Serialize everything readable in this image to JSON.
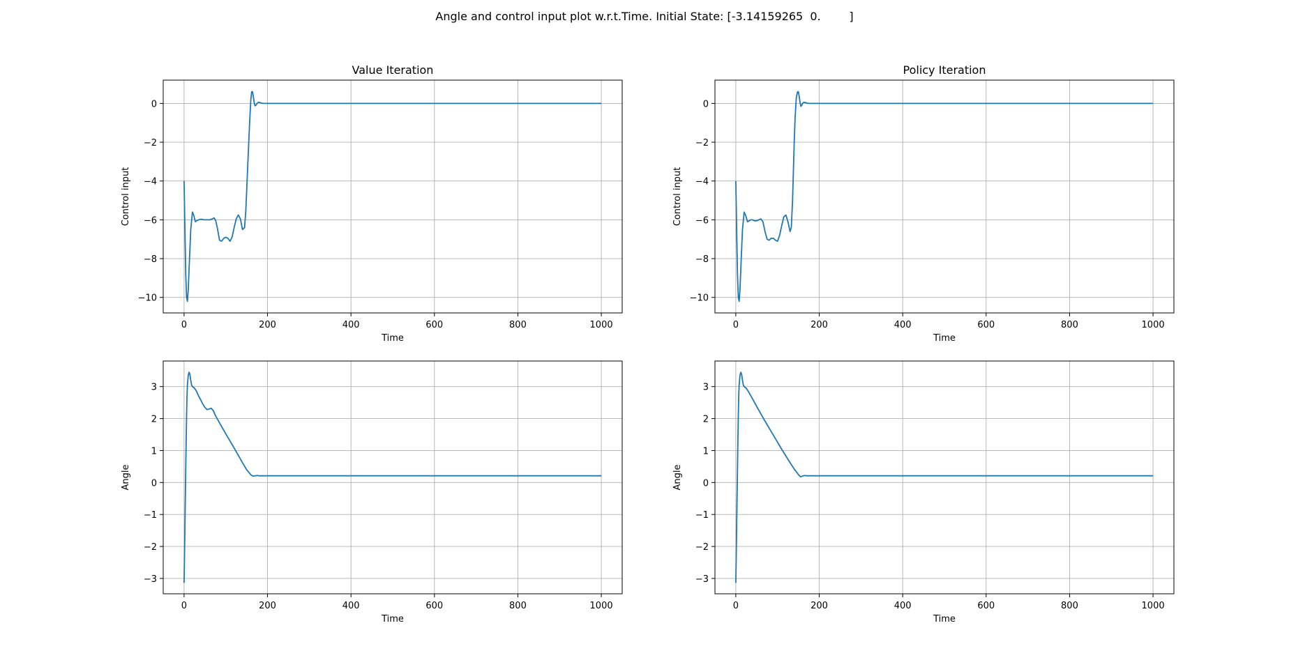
{
  "figure": {
    "suptitle": "Angle and control input plot w.r.t.Time. Initial State: [-3.14159265  0.        ]"
  },
  "colors": {
    "line": "#1f77b4",
    "grid": "#b0b0b0",
    "axes": "#000000"
  },
  "chart_data": [
    {
      "type": "line",
      "title": "Value Iteration",
      "xlabel": "Time",
      "ylabel": "Control input",
      "xlim": [
        -50,
        1050
      ],
      "ylim": [
        -10.8,
        1.2
      ],
      "xticks": [
        0,
        200,
        400,
        600,
        800,
        1000
      ],
      "xtick_labels": [
        "0",
        "200",
        "400",
        "600",
        "800",
        "1000"
      ],
      "yticks": [
        0,
        -2,
        -4,
        -6,
        -8,
        -10
      ],
      "ytick_labels": [
        "0",
        "−2",
        "−4",
        "−6",
        "−8",
        "−10"
      ],
      "grid": true,
      "series": [
        {
          "name": "control",
          "x": [
            0,
            2,
            4,
            6,
            8,
            10,
            13,
            16,
            20,
            23,
            27,
            30,
            35,
            40,
            48,
            55,
            62,
            68,
            72,
            76,
            80,
            85,
            90,
            95,
            100,
            105,
            110,
            115,
            120,
            125,
            130,
            135,
            140,
            145,
            148,
            150,
            153,
            156,
            158,
            160,
            162,
            164,
            166,
            168,
            170,
            172,
            175,
            178,
            181,
            185,
            190,
            195,
            200,
            300,
            500,
            700,
            900,
            1000
          ],
          "y": [
            -4.0,
            -6.5,
            -8.8,
            -10.0,
            -10.2,
            -9.6,
            -8.0,
            -6.5,
            -5.6,
            -5.75,
            -6.1,
            -6.05,
            -6.0,
            -5.97,
            -6.0,
            -6.0,
            -6.0,
            -5.95,
            -5.9,
            -6.05,
            -6.45,
            -7.05,
            -7.1,
            -6.95,
            -6.9,
            -6.95,
            -7.1,
            -6.9,
            -6.4,
            -5.95,
            -5.75,
            -5.95,
            -6.5,
            -6.4,
            -5.5,
            -4.5,
            -3.0,
            -1.5,
            -0.6,
            0.2,
            0.6,
            0.6,
            0.35,
            0.05,
            -0.12,
            -0.1,
            0.0,
            0.06,
            0.05,
            0.02,
            0.0,
            0.0,
            0.0,
            0.0,
            0.0,
            0.0,
            0.0,
            0.0
          ]
        }
      ]
    },
    {
      "type": "line",
      "title": "Policy Iteration",
      "xlabel": "Time",
      "ylabel": "Control input",
      "xlim": [
        -50,
        1050
      ],
      "ylim": [
        -10.8,
        1.2
      ],
      "xticks": [
        0,
        200,
        400,
        600,
        800,
        1000
      ],
      "xtick_labels": [
        "0",
        "200",
        "400",
        "600",
        "800",
        "1000"
      ],
      "yticks": [
        0,
        -2,
        -4,
        -6,
        -8,
        -10
      ],
      "ytick_labels": [
        "0",
        "−2",
        "−4",
        "−6",
        "−8",
        "−10"
      ],
      "grid": true,
      "series": [
        {
          "name": "control",
          "x": [
            0,
            2,
            4,
            6,
            8,
            10,
            13,
            16,
            20,
            24,
            28,
            32,
            36,
            40,
            45,
            50,
            55,
            60,
            65,
            70,
            75,
            80,
            85,
            90,
            95,
            100,
            105,
            110,
            115,
            120,
            125,
            130,
            133,
            136,
            138,
            140,
            142,
            145,
            148,
            150,
            152,
            154,
            156,
            158,
            160,
            163,
            166,
            170,
            175,
            180,
            190,
            200,
            300,
            500,
            700,
            900,
            1000
          ],
          "y": [
            -4.0,
            -6.5,
            -8.8,
            -10.0,
            -10.2,
            -9.6,
            -8.0,
            -6.5,
            -5.6,
            -5.8,
            -6.1,
            -6.05,
            -6.0,
            -6.0,
            -6.05,
            -6.05,
            -6.0,
            -5.95,
            -6.1,
            -6.6,
            -7.0,
            -7.05,
            -6.95,
            -6.95,
            -7.05,
            -7.1,
            -6.8,
            -6.3,
            -5.85,
            -5.75,
            -6.1,
            -6.6,
            -6.4,
            -5.0,
            -3.5,
            -2.0,
            -0.8,
            0.3,
            0.6,
            0.6,
            0.35,
            0.05,
            -0.15,
            -0.1,
            0.0,
            0.06,
            0.05,
            0.02,
            0.0,
            0.0,
            0.0,
            0.0,
            0.0,
            0.0,
            0.0,
            0.0,
            0.0
          ]
        }
      ]
    },
    {
      "type": "line",
      "title": "",
      "xlabel": "Time",
      "ylabel": "Angle",
      "xlim": [
        -50,
        1050
      ],
      "ylim": [
        -3.48,
        3.8
      ],
      "xticks": [
        0,
        200,
        400,
        600,
        800,
        1000
      ],
      "xtick_labels": [
        "0",
        "200",
        "400",
        "600",
        "800",
        "1000"
      ],
      "yticks": [
        3,
        2,
        1,
        0,
        -1,
        -2,
        -3
      ],
      "ytick_labels": [
        "3",
        "2",
        "1",
        "0",
        "−1",
        "−2",
        "−3"
      ],
      "grid": true,
      "series": [
        {
          "name": "angle",
          "x": [
            0,
            1,
            2,
            3,
            4,
            5,
            6,
            7,
            8,
            10,
            12,
            14,
            16,
            18,
            20,
            22,
            25,
            30,
            35,
            40,
            45,
            50,
            55,
            60,
            65,
            70,
            75,
            80,
            90,
            100,
            110,
            120,
            130,
            140,
            150,
            160,
            165,
            170,
            175,
            180,
            190,
            200,
            300,
            500,
            700,
            900,
            1000
          ],
          "y": [
            -3.14,
            -2.3,
            -1.4,
            -0.5,
            0.4,
            1.3,
            2.1,
            2.7,
            3.05,
            3.35,
            3.45,
            3.38,
            3.2,
            3.05,
            3.0,
            2.98,
            2.95,
            2.85,
            2.7,
            2.58,
            2.45,
            2.35,
            2.28,
            2.3,
            2.32,
            2.25,
            2.1,
            1.98,
            1.75,
            1.52,
            1.3,
            1.08,
            0.85,
            0.62,
            0.4,
            0.24,
            0.2,
            0.21,
            0.22,
            0.21,
            0.21,
            0.21,
            0.21,
            0.21,
            0.21,
            0.21,
            0.21
          ]
        }
      ]
    },
    {
      "type": "line",
      "title": "",
      "xlabel": "Time",
      "ylabel": "Angle",
      "xlim": [
        -50,
        1050
      ],
      "ylim": [
        -3.48,
        3.8
      ],
      "xticks": [
        0,
        200,
        400,
        600,
        800,
        1000
      ],
      "xtick_labels": [
        "0",
        "200",
        "400",
        "600",
        "800",
        "1000"
      ],
      "yticks": [
        3,
        2,
        1,
        0,
        -1,
        -2,
        -3
      ],
      "ytick_labels": [
        "3",
        "2",
        "1",
        "0",
        "−1",
        "−2",
        "−3"
      ],
      "grid": true,
      "series": [
        {
          "name": "angle",
          "x": [
            0,
            1,
            2,
            3,
            4,
            5,
            6,
            7,
            8,
            10,
            12,
            14,
            16,
            18,
            20,
            22,
            25,
            30,
            40,
            50,
            60,
            70,
            80,
            90,
            100,
            110,
            120,
            130,
            140,
            150,
            155,
            160,
            165,
            170,
            175,
            180,
            190,
            200,
            300,
            500,
            700,
            900,
            1000
          ],
          "y": [
            -3.14,
            -2.3,
            -1.4,
            -0.5,
            0.4,
            1.3,
            2.1,
            2.7,
            3.05,
            3.35,
            3.45,
            3.38,
            3.2,
            3.05,
            3.0,
            2.98,
            2.95,
            2.85,
            2.62,
            2.38,
            2.15,
            1.92,
            1.7,
            1.48,
            1.26,
            1.04,
            0.83,
            0.62,
            0.42,
            0.25,
            0.18,
            0.2,
            0.22,
            0.21,
            0.21,
            0.21,
            0.21,
            0.21,
            0.21,
            0.21,
            0.21,
            0.21,
            0.21
          ]
        }
      ]
    }
  ]
}
